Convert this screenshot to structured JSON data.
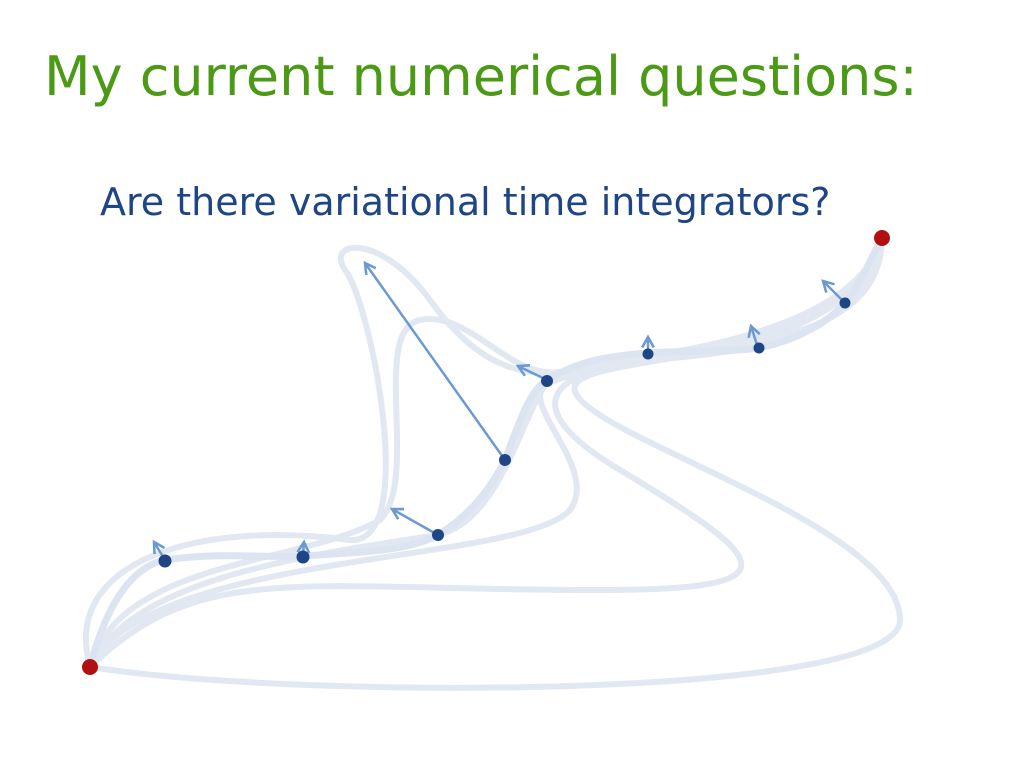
{
  "title": "My current numerical questions:",
  "subtitle": "Are there variational time integrators?"
}
